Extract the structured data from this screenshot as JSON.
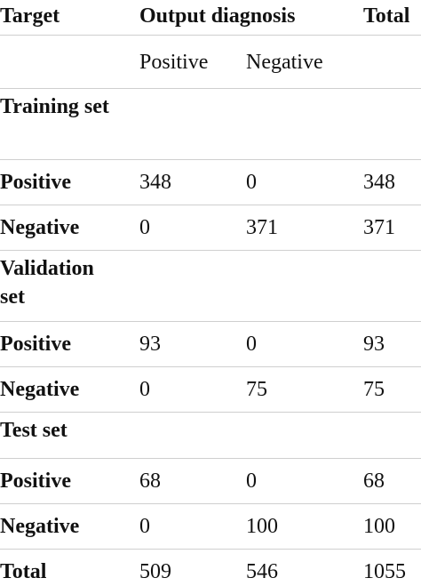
{
  "header": {
    "target": "Target",
    "output": "Output diagnosis",
    "total": "Total",
    "positive": "Positive",
    "negative": "Negative"
  },
  "sections": [
    {
      "title": "Training set",
      "rows": [
        [
          "Positive",
          348,
          0,
          348
        ],
        [
          "Negative",
          0,
          371,
          371
        ]
      ]
    },
    {
      "title": "Validation set",
      "rows": [
        [
          "Positive",
          93,
          0,
          93
        ],
        [
          "Negative",
          0,
          75,
          75
        ]
      ]
    },
    {
      "title": "Test set",
      "rows": [
        [
          "Positive",
          68,
          0,
          68
        ],
        [
          "Negative",
          0,
          100,
          100
        ]
      ]
    }
  ],
  "total": [
    "Total",
    509,
    546,
    1055
  ]
}
